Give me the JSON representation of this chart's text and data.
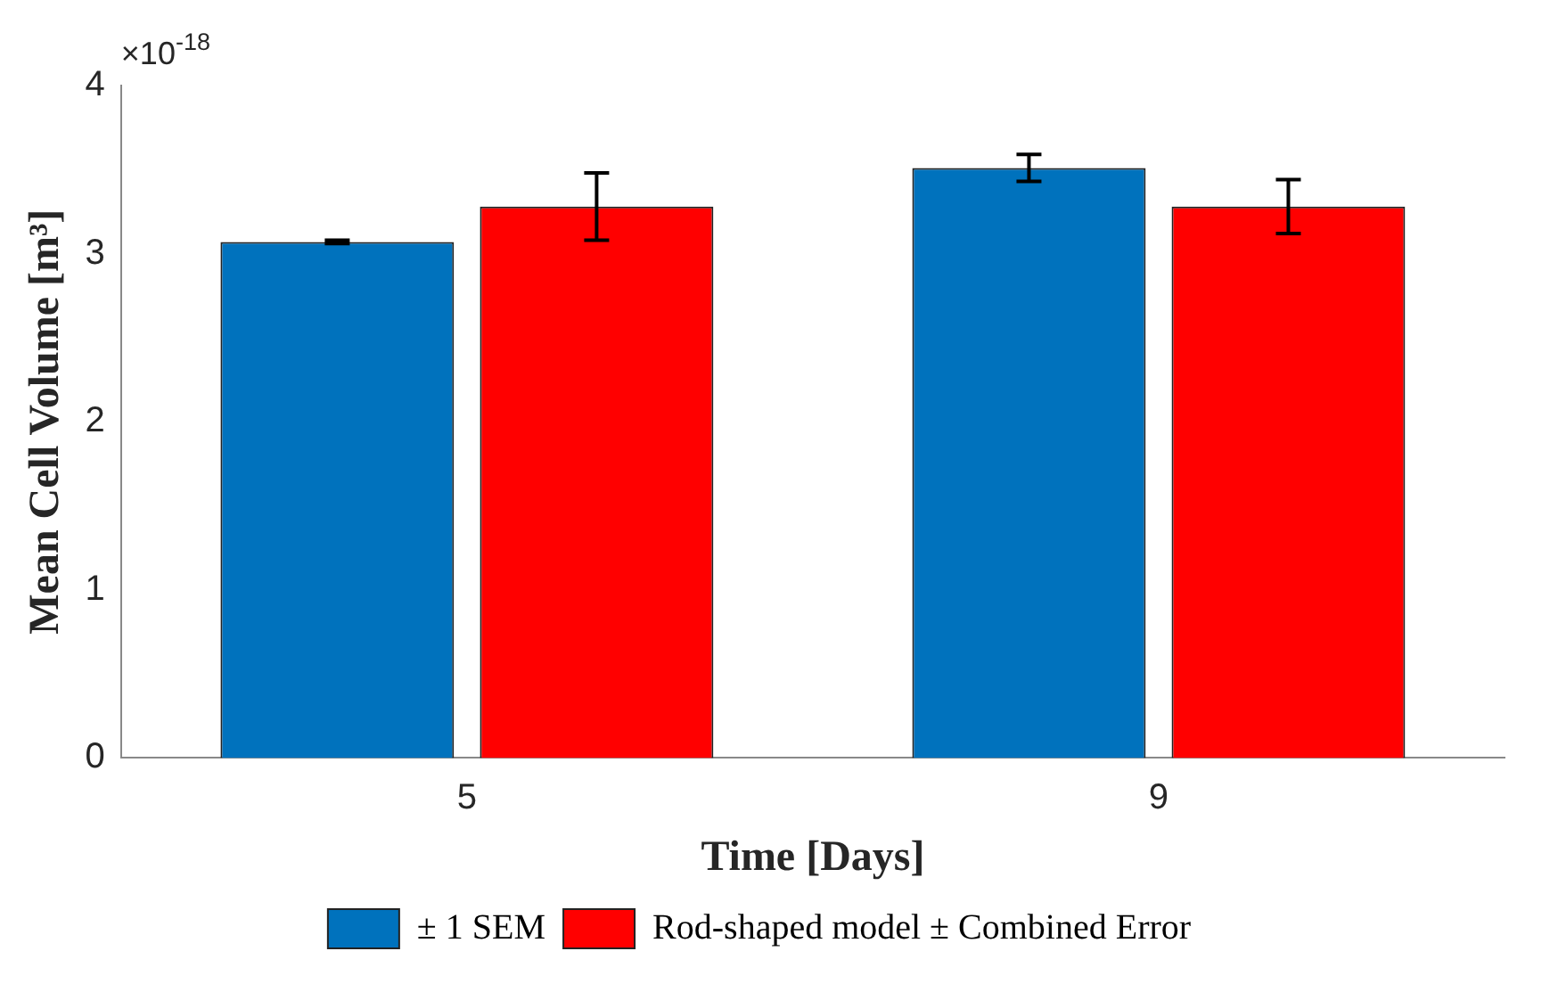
{
  "chart_data": {
    "type": "bar",
    "xlabel": "Time [Days]",
    "ylabel": "Mean Cell Volume [m³]",
    "categories": [
      "5",
      "9"
    ],
    "series": [
      {
        "name": "± 1 SEM",
        "color": "#0072bd",
        "values": [
          3.07,
          3.51
        ],
        "errors": [
          0.01,
          0.08
        ]
      },
      {
        "name": "Rod-shaped model ± Combined Error",
        "color": "#ff0000",
        "values": [
          3.28,
          3.28
        ],
        "errors": [
          0.2,
          0.16
        ]
      }
    ],
    "ylim": [
      0,
      4
    ],
    "yticks": [
      0,
      1,
      2,
      3,
      4
    ],
    "grid": false,
    "legend": "bottom",
    "annotations": [
      "×10$^{-18}$"
    ]
  }
}
